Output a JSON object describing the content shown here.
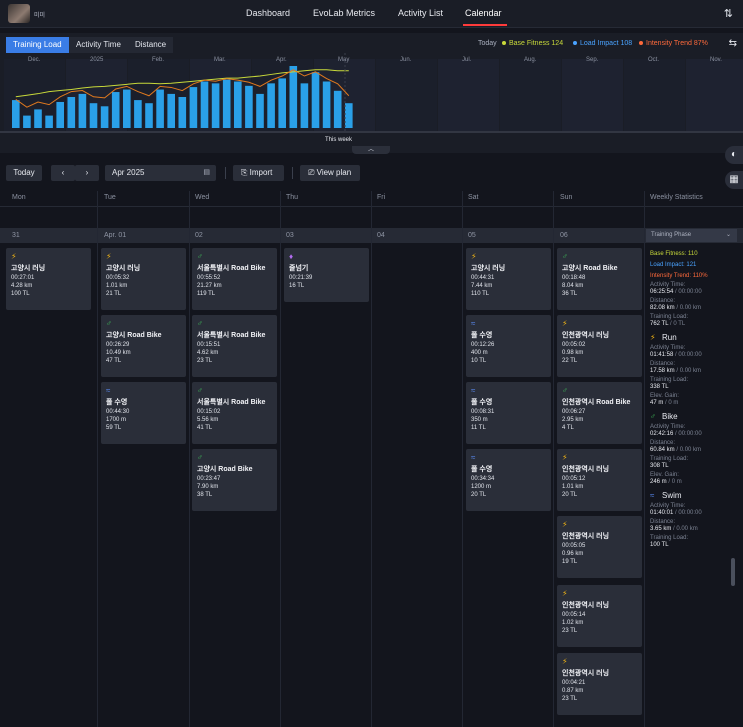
{
  "nav": {
    "username": "미미",
    "links": [
      "Dashboard",
      "EvoLab Metrics",
      "Activity List",
      "Calendar"
    ],
    "active": "Calendar"
  },
  "chart_panel": {
    "tabs": [
      "Training Load",
      "Activity Time",
      "Distance"
    ],
    "active_tab": "Training Load",
    "legend_today": "Today",
    "legend_fitness": "Base Fitness 124",
    "legend_impact": "Load Impact 108",
    "legend_trend": "Intensity Trend 87%",
    "this_week": "This week",
    "months": [
      "Dec.",
      "2025",
      "Feb.",
      "Mar.",
      "Apr.",
      "May",
      "Jun.",
      "Jul.",
      "Aug.",
      "Sep.",
      "Oct.",
      "Nov."
    ],
    "colors": {
      "bar": "#2aa0e8",
      "fitness": "#c8d93a",
      "impact": "#e0791e",
      "trend": "#ff5a3b",
      "accent": "#3a7de6"
    }
  },
  "chart_data": {
    "type": "bar",
    "categories": [
      "Dec.",
      "2025",
      "Feb.",
      "Mar.",
      "Apr.",
      "May",
      "Jun.",
      "Jul.",
      "Aug.",
      "Sep.",
      "Oct.",
      "Nov."
    ],
    "bars": [
      45,
      20,
      30,
      20,
      42,
      50,
      55,
      40,
      35,
      58,
      62,
      45,
      40,
      62,
      55,
      50,
      66,
      75,
      72,
      78,
      75,
      68,
      55,
      72,
      80,
      100,
      72,
      90,
      75,
      60,
      40
    ],
    "fitness": [
      60,
      63,
      66,
      70,
      72,
      74,
      77,
      79,
      80,
      82,
      84,
      86,
      86,
      85,
      86,
      88,
      90,
      92,
      94,
      96,
      96,
      98,
      100,
      103,
      106,
      108,
      110,
      112,
      112,
      110,
      110
    ],
    "impact": [
      55,
      40,
      50,
      45,
      60,
      70,
      72,
      60,
      58,
      75,
      80,
      70,
      62,
      80,
      78,
      72,
      85,
      92,
      90,
      95,
      92,
      88,
      80,
      92,
      100,
      112,
      100,
      108,
      95,
      85,
      62
    ],
    "series": [
      {
        "name": "Base Fitness 124"
      },
      {
        "name": "Load Impact 108"
      },
      {
        "name": "Intensity Trend 87%"
      }
    ]
  },
  "toolbar": {
    "today": "Today",
    "month": "Apr 2025",
    "import": "Import",
    "view_plan": "View plan"
  },
  "calendar": {
    "days": [
      "Mon",
      "Tue",
      "Wed",
      "Thu",
      "Fri",
      "Sat",
      "Sun",
      "Weekly Statistics"
    ],
    "dates": [
      "31",
      "Apr. 01",
      "02",
      "03",
      "04",
      "05",
      "06"
    ],
    "phase": "Training Phase",
    "cards": [
      {
        "col": 0,
        "slot": 0,
        "sport": "run",
        "name": "고양시 러닝",
        "l1": "00:27:01",
        "l2": "4.28 km",
        "l3": "100 TL"
      },
      {
        "col": 1,
        "slot": 0,
        "sport": "run",
        "name": "고양시 러닝",
        "l1": "00:05:32",
        "l2": "1.01 km",
        "l3": "21 TL"
      },
      {
        "col": 1,
        "slot": 1,
        "sport": "bike",
        "name": "고양시 Road Bike",
        "l1": "00:26:29",
        "l2": "10.49 km",
        "l3": "47 TL"
      },
      {
        "col": 1,
        "slot": 2,
        "sport": "swim",
        "name": "풀 수영",
        "l1": "00:44:30",
        "l2": "1700 m",
        "l3": "59 TL"
      },
      {
        "col": 2,
        "slot": 0,
        "sport": "bike",
        "name": "서울특별시 Road Bike",
        "l1": "00:55:52",
        "l2": "21.27 km",
        "l3": "119 TL"
      },
      {
        "col": 2,
        "slot": 1,
        "sport": "bike",
        "name": "서울특별시 Road Bike",
        "l1": "00:15:51",
        "l2": "4.62 km",
        "l3": "23 TL"
      },
      {
        "col": 2,
        "slot": 2,
        "sport": "bike",
        "name": "서울특별시 Road Bike",
        "l1": "00:15:02",
        "l2": "5.56 km",
        "l3": "41 TL"
      },
      {
        "col": 2,
        "slot": 3,
        "sport": "bike",
        "name": "고양시 Road Bike",
        "l1": "00:23:47",
        "l2": "7.90 km",
        "l3": "38 TL"
      },
      {
        "col": 3,
        "slot": 0,
        "sport": "hike",
        "name": "줄넘기",
        "l1": "00:21:39",
        "l2": "16 TL",
        "l3": ""
      },
      {
        "col": 5,
        "slot": 0,
        "sport": "run",
        "name": "고양시 러닝",
        "l1": "00:44:31",
        "l2": "7.44 km",
        "l3": "110 TL"
      },
      {
        "col": 5,
        "slot": 1,
        "sport": "swim",
        "name": "풀 수영",
        "l1": "00:12:26",
        "l2": "400 m",
        "l3": "10 TL"
      },
      {
        "col": 5,
        "slot": 2,
        "sport": "swim",
        "name": "풀 수영",
        "l1": "00:08:31",
        "l2": "350 m",
        "l3": "11 TL"
      },
      {
        "col": 5,
        "slot": 3,
        "sport": "swim",
        "name": "풀 수영",
        "l1": "00:34:34",
        "l2": "1200 m",
        "l3": "20 TL"
      },
      {
        "col": 6,
        "slot": 0,
        "sport": "bike",
        "name": "고양시 Road Bike",
        "l1": "00:18:48",
        "l2": "8.04 km",
        "l3": "36 TL"
      },
      {
        "col": 6,
        "slot": 1,
        "sport": "run",
        "name": "인천광역시 러닝",
        "l1": "00:05:02",
        "l2": "0.98 km",
        "l3": "22 TL"
      },
      {
        "col": 6,
        "slot": 2,
        "sport": "bike",
        "name": "인천광역시 Road Bike",
        "l1": "00:06:27",
        "l2": "2.95 km",
        "l3": "4 TL"
      },
      {
        "col": 6,
        "slot": 3,
        "sport": "run",
        "name": "인천광역시 러닝",
        "l1": "00:05:12",
        "l2": "1.01 km",
        "l3": "20 TL"
      },
      {
        "col": 6,
        "slot": 4,
        "sport": "run",
        "name": "인천광역시 러닝",
        "l1": "00:05:05",
        "l2": "0.96 km",
        "l3": "19 TL"
      },
      {
        "col": 6,
        "slot": 5,
        "sport": "run",
        "name": "인천광역시 러닝",
        "l1": "00:05:14",
        "l2": "1.02 km",
        "l3": "23 TL"
      },
      {
        "col": 6,
        "slot": 6,
        "sport": "run",
        "name": "인천광역시 러닝",
        "l1": "00:04:21",
        "l2": "0.87 km",
        "l3": "23 TL"
      }
    ]
  },
  "weekly": {
    "base_fitness": "Base Fitness: 110",
    "load_impact": "Load Impact: 121",
    "intensity_trend": "Intensity Trend: 110%",
    "activity_time_label": "Activity Time:",
    "activity_time": "06:25:54",
    "activity_time_sub": " / 00:00:00",
    "distance_label": "Distance:",
    "distance": "82.08 km",
    "distance_sub": " / 0.00 km",
    "training_load_label": "Training Load:",
    "training_load": "762 TL",
    "training_load_sub": " / 0 TL",
    "run": {
      "title": "Run",
      "time": "01:41:58",
      "time_sub": " / 00:00:00",
      "dist": "17.58 km",
      "dist_sub": " / 0.00 km",
      "load": "338 TL",
      "gain_label": "Elev. Gain:",
      "gain": "47 m",
      "gain_sub": " / 0 m"
    },
    "bike": {
      "title": "Bike",
      "time": "02:42:16",
      "time_sub": " / 00:00:00",
      "dist": "60.84 km",
      "dist_sub": " / 0.00 km",
      "load": "308 TL",
      "gain_label": "Elev. Gain:",
      "gain": "246 m",
      "gain_sub": " / 0 m"
    },
    "swim": {
      "title": "Swim",
      "time": "01:40:01",
      "time_sub": " / 00:00:00",
      "dist": "3.65 km",
      "dist_sub": " / 0.00 km",
      "load": "100 TL"
    }
  }
}
